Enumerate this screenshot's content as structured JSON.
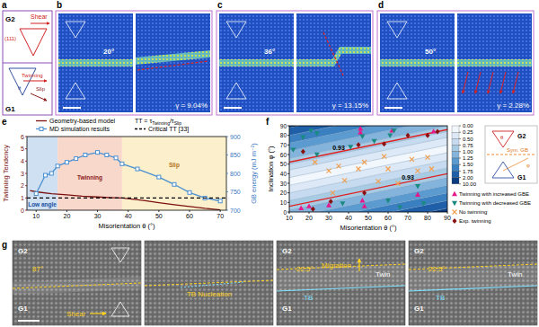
{
  "panel_a": {
    "label": "a",
    "top_grain": "G2",
    "bottom_grain": "G1",
    "plane": "(111)",
    "shear": "Shear",
    "twinning": "Twinning",
    "slip": "Slip",
    "angle": "θ"
  },
  "md_snapshots": [
    {
      "label": "b",
      "misorientation": "20°",
      "strain": "γ = 9.04%"
    },
    {
      "label": "c",
      "misorientation": "36°",
      "strain": "γ = 13.15%"
    },
    {
      "label": "d",
      "misorientation": "50°",
      "strain": "γ = 2.28%"
    }
  ],
  "chart_data": [
    {
      "type": "line",
      "panel_label": "e",
      "x_label": "Misorientation θ (°)",
      "y_label": "Twinning Tendency",
      "y2_label": "GB energy (mJ m⁻²)",
      "xlim": [
        7,
        72
      ],
      "xticks": [
        10,
        20,
        30,
        40,
        50,
        60,
        70
      ],
      "ylim": [
        0,
        6
      ],
      "yticks": [
        0,
        1,
        2,
        3,
        4,
        5,
        6
      ],
      "y2lim": [
        700,
        900
      ],
      "y2ticks": [
        700,
        750,
        800,
        850,
        900
      ],
      "annotation": [
        "TT = τ",
        "Twinning",
        "/τ",
        "Slip"
      ],
      "regions": [
        {
          "label": "Low angle",
          "from": 7,
          "to": 17,
          "color": "#cfe0f3"
        },
        {
          "label": "Twinning",
          "from": 17,
          "to": 38,
          "color": "#f9d8cc"
        },
        {
          "label": "Slip",
          "from": 38,
          "to": 72,
          "color": "#fcf0cc"
        }
      ],
      "series": [
        {
          "name": "Geometry-based model",
          "type": "line",
          "color": "#7a1010",
          "x": [
            8,
            10,
            15,
            20,
            25,
            30,
            35,
            38,
            45,
            50,
            55,
            60,
            65,
            70
          ],
          "values": [
            1.6,
            1.5,
            1.35,
            1.25,
            1.15,
            1.08,
            1.02,
            1.0,
            0.8,
            0.62,
            0.45,
            0.3,
            0.15,
            0.03
          ]
        },
        {
          "name": "MD simulation results",
          "type": "line",
          "marker": "square",
          "axis": "y2",
          "color": "#4a8fd0",
          "x": [
            10,
            13,
            15,
            17,
            20,
            23,
            26,
            30,
            33,
            36,
            38,
            43,
            50,
            55,
            60,
            65,
            70
          ],
          "values": [
            745,
            795,
            800,
            820,
            830,
            840,
            850,
            857,
            850,
            842,
            826,
            812,
            790,
            770,
            748,
            733,
            725
          ]
        },
        {
          "name": "Critical TT [33]",
          "type": "line",
          "line_style": "dashed",
          "color": "#000000",
          "x": [
            7,
            72
          ],
          "values": [
            1,
            1
          ]
        }
      ]
    },
    {
      "type": "scatter",
      "panel_label": "f",
      "x_label": "Misorientation θ (°)",
      "y_label": "Inclination φ (°)",
      "xlim": [
        10,
        90
      ],
      "xticks": [
        10,
        20,
        30,
        40,
        50,
        60,
        70,
        80,
        90
      ],
      "ylim": [
        0,
        90
      ],
      "yticks": [
        0,
        10,
        20,
        30,
        40,
        50,
        60,
        70,
        80,
        90
      ],
      "contour_bands": [
        {
          "lower": [
            -120,
            -86
          ],
          "upper": [
            -30,
            4
          ],
          "level": 2.0
        },
        {
          "lower": [
            -30,
            4
          ],
          "upper": [
            -22,
            12
          ],
          "level": 1.75
        },
        {
          "lower": [
            -22,
            12
          ],
          "upper": [
            -14,
            20
          ],
          "level": 1.5
        },
        {
          "lower": [
            -14,
            20
          ],
          "upper": [
            -6,
            28
          ],
          "level": 1.25
        },
        {
          "lower": [
            -6,
            28
          ],
          "upper": [
            2,
            36
          ],
          "level": 1.0
        },
        {
          "lower": [
            2,
            36
          ],
          "upper": [
            12,
            46
          ],
          "level": 0.75
        },
        {
          "lower": [
            12,
            46
          ],
          "upper": [
            20,
            54
          ],
          "level": 0.5
        },
        {
          "lower": [
            20,
            54
          ],
          "upper": [
            28,
            62
          ],
          "level": 0.25
        },
        {
          "lower": [
            28,
            62
          ],
          "upper": [
            36,
            70
          ],
          "level": 0
        },
        {
          "lower": [
            36,
            70
          ],
          "upper": [
            44,
            78
          ],
          "level": 0.25
        },
        {
          "lower": [
            44,
            78
          ],
          "upper": [
            50,
            84
          ],
          "level": 0.5
        },
        {
          "lower": [
            50,
            84
          ],
          "upper": [
            56,
            90
          ],
          "level": 0.75
        },
        {
          "lower": [
            56,
            90
          ],
          "upper": [
            64,
            98
          ],
          "level": 1.0
        },
        {
          "lower": [
            64,
            98
          ],
          "upper": [
            72,
            106
          ],
          "level": 1.25
        },
        {
          "lower": [
            72,
            106
          ],
          "upper": [
            80,
            114
          ],
          "level": 1.5
        },
        {
          "lower": [
            80,
            114
          ],
          "upper": [
            88,
            122
          ],
          "level": 1.75
        },
        {
          "lower": [
            88,
            122
          ],
          "upper": [
            200,
            234
          ],
          "level": 2.0
        }
      ],
      "critical_lines": [
        {
          "level": 0.93,
          "y": [
            6,
            40
          ]
        },
        {
          "level": 0.93,
          "y": [
            52,
            86
          ]
        }
      ],
      "colorbar": {
        "ticks": [
          {
            "value": 0,
            "label": "0.00"
          },
          {
            "value": 0.25,
            "label": "0.25"
          },
          {
            "value": 0.5,
            "label": "0.50"
          },
          {
            "value": 0.75,
            "label": "0.75"
          },
          {
            "value": 1,
            "label": "1.00"
          },
          {
            "value": 1.25,
            "label": "1.25"
          },
          {
            "value": 1.5,
            "label": "1.50"
          },
          {
            "value": 1.75,
            "label": "1.75"
          },
          {
            "value": 2,
            "label": "2.00"
          },
          {
            "value": 10,
            "label": "10.00"
          }
        ],
        "colors": [
          "#f2f7fd",
          "#dde9f6",
          "#c6dbef",
          "#a8cbe4",
          "#84b4dc",
          "#5b9bd0",
          "#3a7fc0",
          "#1f5fa8",
          "#0b3c80"
        ]
      },
      "series": [
        {
          "name": "Twinning with increased GBE",
          "marker": "triangle-up",
          "color": "#e6198a",
          "x": [
            46,
            46,
            62,
            83,
            20,
            16,
            47,
            48,
            75,
            30
          ],
          "values": [
            87,
            83,
            85,
            84,
            6,
            4,
            12,
            6,
            18,
            7
          ]
        },
        {
          "name": "Twinning with decreased GBE",
          "marker": "triangle-down",
          "color": "#1a8a80",
          "x": [
            17,
            21,
            24,
            41,
            47,
            53,
            61,
            63,
            75,
            60,
            66,
            78,
            37,
            24,
            12
          ],
          "values": [
            78,
            85,
            82,
            68,
            79,
            74,
            80,
            85,
            27,
            12,
            5,
            9,
            9,
            60,
            65
          ]
        },
        {
          "name": "No twinning",
          "marker": "x",
          "color": "#f0a050",
          "x": [
            23,
            30,
            35,
            38,
            48,
            55,
            60,
            65,
            72,
            75,
            80,
            82,
            45,
            32,
            58
          ],
          "values": [
            52,
            43,
            48,
            33,
            52,
            32,
            45,
            30,
            55,
            43,
            57,
            45,
            45,
            20,
            58
          ]
        },
        {
          "name": "Exp. twinning",
          "marker": "diamond",
          "color": "#8b1010",
          "x": [
            17,
            22,
            45,
            58,
            70,
            80,
            85,
            48,
            31
          ],
          "values": [
            63,
            3,
            70,
            71,
            80,
            80,
            84,
            20,
            11
          ]
        }
      ],
      "schematic": {
        "top": "G2",
        "bottom": "G1",
        "gb": "Sym. GB",
        "theta": "θ",
        "phi": "φ"
      }
    }
  ],
  "panel_g": {
    "label": "g",
    "frames": [
      {
        "top": "G2",
        "angle": "87°",
        "bottom": "G1",
        "shear": "Shear"
      },
      {
        "note": "TB Nucleation"
      },
      {
        "top": "G2",
        "migration": "Migration",
        "angle": "22.5°",
        "twin": "Twin",
        "tb": "TB",
        "bottom": "G1"
      },
      {
        "top": "G2",
        "angle": "22.5°",
        "twin": "Twin",
        "tb": "TB",
        "bottom": "G1"
      }
    ]
  }
}
